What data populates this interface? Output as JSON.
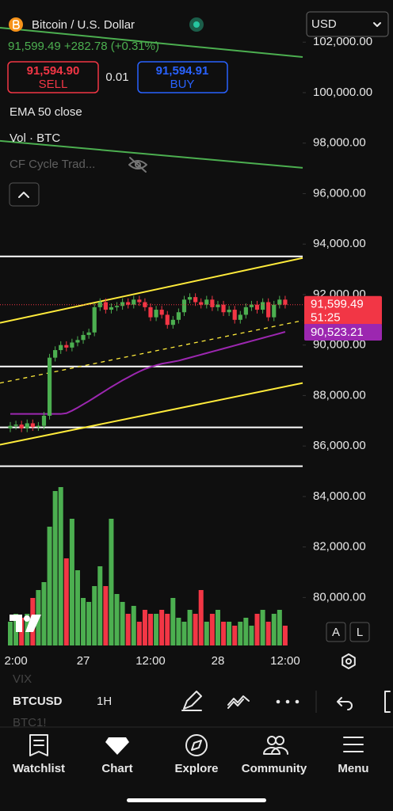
{
  "header": {
    "title": "Bitcoin / U.S. Dollar",
    "currency": "USD",
    "quote": "91,599.49 +282.78 (+0.31%)",
    "sell_price": "91,594.90",
    "sell_label": "SELL",
    "quantity": "0.01",
    "buy_price": "91,594.91",
    "buy_label": "BUY"
  },
  "indicators": [
    "EMA 50 close",
    "Vol · BTC",
    "CF Cycle Trad..."
  ],
  "chart_data": {
    "type": "candlestick",
    "categories": [
      null,
      "2:00",
      null,
      null,
      null,
      null,
      null,
      null,
      null,
      null,
      null,
      null,
      null,
      "27",
      null,
      null,
      null,
      null,
      null,
      null,
      null,
      null,
      null,
      null,
      null,
      "12:00",
      null,
      null,
      null,
      null,
      null,
      null,
      null,
      null,
      null,
      null,
      null,
      "28",
      null,
      null,
      null,
      null,
      null,
      null,
      null,
      null,
      null,
      null,
      null,
      "12:00"
    ],
    "open": [
      86700,
      86800,
      86850,
      86700,
      86900,
      86750,
      86800,
      87200,
      89500,
      89800,
      90000,
      89900,
      90100,
      90200,
      90400,
      90500,
      91500,
      91700,
      91400,
      91500,
      91550,
      91700,
      91600,
      91800,
      91700,
      91500,
      91100,
      91400,
      91200,
      90800,
      91000,
      91300,
      91800,
      91900,
      91700,
      91600,
      91800,
      91500,
      91600,
      91300,
      91400,
      91000,
      91200,
      91500,
      91600,
      91400,
      91700,
      91100,
      91600,
      91800
    ],
    "close": [
      86800,
      86850,
      86700,
      86900,
      86750,
      86800,
      87200,
      89500,
      89800,
      90000,
      89900,
      90100,
      90200,
      90400,
      90500,
      91500,
      91700,
      91400,
      91500,
      91550,
      91700,
      91600,
      91800,
      91700,
      91500,
      91100,
      91400,
      91200,
      90800,
      91000,
      91300,
      91800,
      91900,
      91700,
      91600,
      91800,
      91500,
      91600,
      91300,
      91400,
      91000,
      91200,
      91500,
      91600,
      91400,
      91700,
      91100,
      91600,
      91800,
      91599.49
    ],
    "high": [
      86950,
      87000,
      87000,
      87050,
      87050,
      86950,
      87350,
      89650,
      89950,
      90150,
      90150,
      90250,
      90350,
      90550,
      90650,
      91650,
      91850,
      91850,
      91650,
      91700,
      91850,
      91850,
      91950,
      91950,
      91850,
      91650,
      91550,
      91550,
      91350,
      91150,
      91450,
      91950,
      92050,
      92050,
      91850,
      91950,
      91950,
      91750,
      91750,
      91550,
      91550,
      91350,
      91650,
      91750,
      91750,
      91850,
      91850,
      91750,
      91950,
      91950
    ],
    "low": [
      86550,
      86650,
      86550,
      86550,
      86600,
      86600,
      86650,
      87050,
      89350,
      89650,
      89750,
      89750,
      89950,
      90050,
      90250,
      90350,
      91350,
      91250,
      91250,
      91350,
      91400,
      91450,
      91450,
      91550,
      91350,
      90950,
      90950,
      91050,
      90650,
      90650,
      90850,
      91150,
      91650,
      91550,
      91450,
      91450,
      91350,
      91350,
      91150,
      91150,
      90850,
      90850,
      91050,
      91350,
      91250,
      91250,
      90950,
      90950,
      91450,
      91449.49
    ],
    "volume": [
      30,
      40,
      35,
      40,
      60,
      70,
      80,
      150,
      195,
      200,
      110,
      160,
      95,
      60,
      55,
      75,
      100,
      75,
      160,
      65,
      55,
      40,
      50,
      30,
      45,
      40,
      40,
      45,
      40,
      60,
      35,
      30,
      45,
      40,
      70,
      30,
      40,
      45,
      30,
      30,
      25,
      30,
      35,
      25,
      40,
      45,
      30,
      40,
      45,
      25
    ],
    "volume_lim": [
      0,
      200
    ],
    "ema": [
      87270,
      87270,
      87270,
      87270,
      87270,
      87270,
      87270,
      87270,
      87270,
      87270,
      87300,
      87400,
      87520,
      87650,
      87780,
      87920,
      88060,
      88200,
      88340,
      88470,
      88600,
      88720,
      88840,
      88950,
      89050,
      89130,
      89200,
      89260,
      89300,
      89340,
      89380,
      89440,
      89500,
      89560,
      89620,
      89680,
      89740,
      89800,
      89860,
      89920,
      89980,
      90040,
      90100,
      90160,
      90220,
      90280,
      90340,
      90400,
      90460,
      90523.21
    ],
    "ema_color": "#9c27b0",
    "up_color": "#4caf50",
    "down_color": "#f23645",
    "ylim": [
      77000,
      103670
    ],
    "yticks": [
      {
        "value": 80000,
        "label": "80,000.00"
      },
      {
        "value": 82000,
        "label": "82,000.00"
      },
      {
        "value": 84000,
        "label": "84,000.00"
      },
      {
        "value": 86000,
        "label": "86,000.00"
      },
      {
        "value": 88000,
        "label": "88,000.00"
      },
      {
        "value": 90000,
        "label": "90,000.00"
      },
      {
        "value": 92000,
        "label": "92,000.00"
      },
      {
        "value": 94000,
        "label": "94,000.00"
      },
      {
        "value": 96000,
        "label": "96,000.00"
      },
      {
        "value": 98000,
        "label": "98,000.00"
      },
      {
        "value": 100000,
        "label": "100,000.00"
      },
      {
        "value": 102000,
        "label": "102,000.00"
      }
    ],
    "levels": [
      93510,
      89150,
      86740,
      85200
    ],
    "level_color": "#ffffff",
    "trendlines": [
      {
        "start": 102571,
        "end": 101411,
        "color": "#4caf50",
        "dashed": false
      },
      {
        "start": 98088,
        "end": 97022,
        "color": "#4caf50",
        "dashed": false
      },
      {
        "start": 90878,
        "end": 93448,
        "color": "#ffeb3b",
        "dashed": false
      },
      {
        "start": 88495,
        "end": 90972,
        "color": "#ffeb3b",
        "dashed": true
      },
      {
        "start": 86050,
        "end": 88495,
        "color": "#ffeb3b",
        "dashed": false
      }
    ],
    "last_price_label": "91,599.49",
    "countdown": "51:25",
    "ema_last_label": "90,523.21",
    "scale_buttons": [
      "A",
      "L"
    ]
  },
  "toolbar": {
    "symbol": "BTCUSD",
    "interval": "1H",
    "ghost_above": "VIX",
    "ghost_below": "BTC1!"
  },
  "nav": [
    "Watchlist",
    "Chart",
    "Explore",
    "Community",
    "Menu"
  ]
}
